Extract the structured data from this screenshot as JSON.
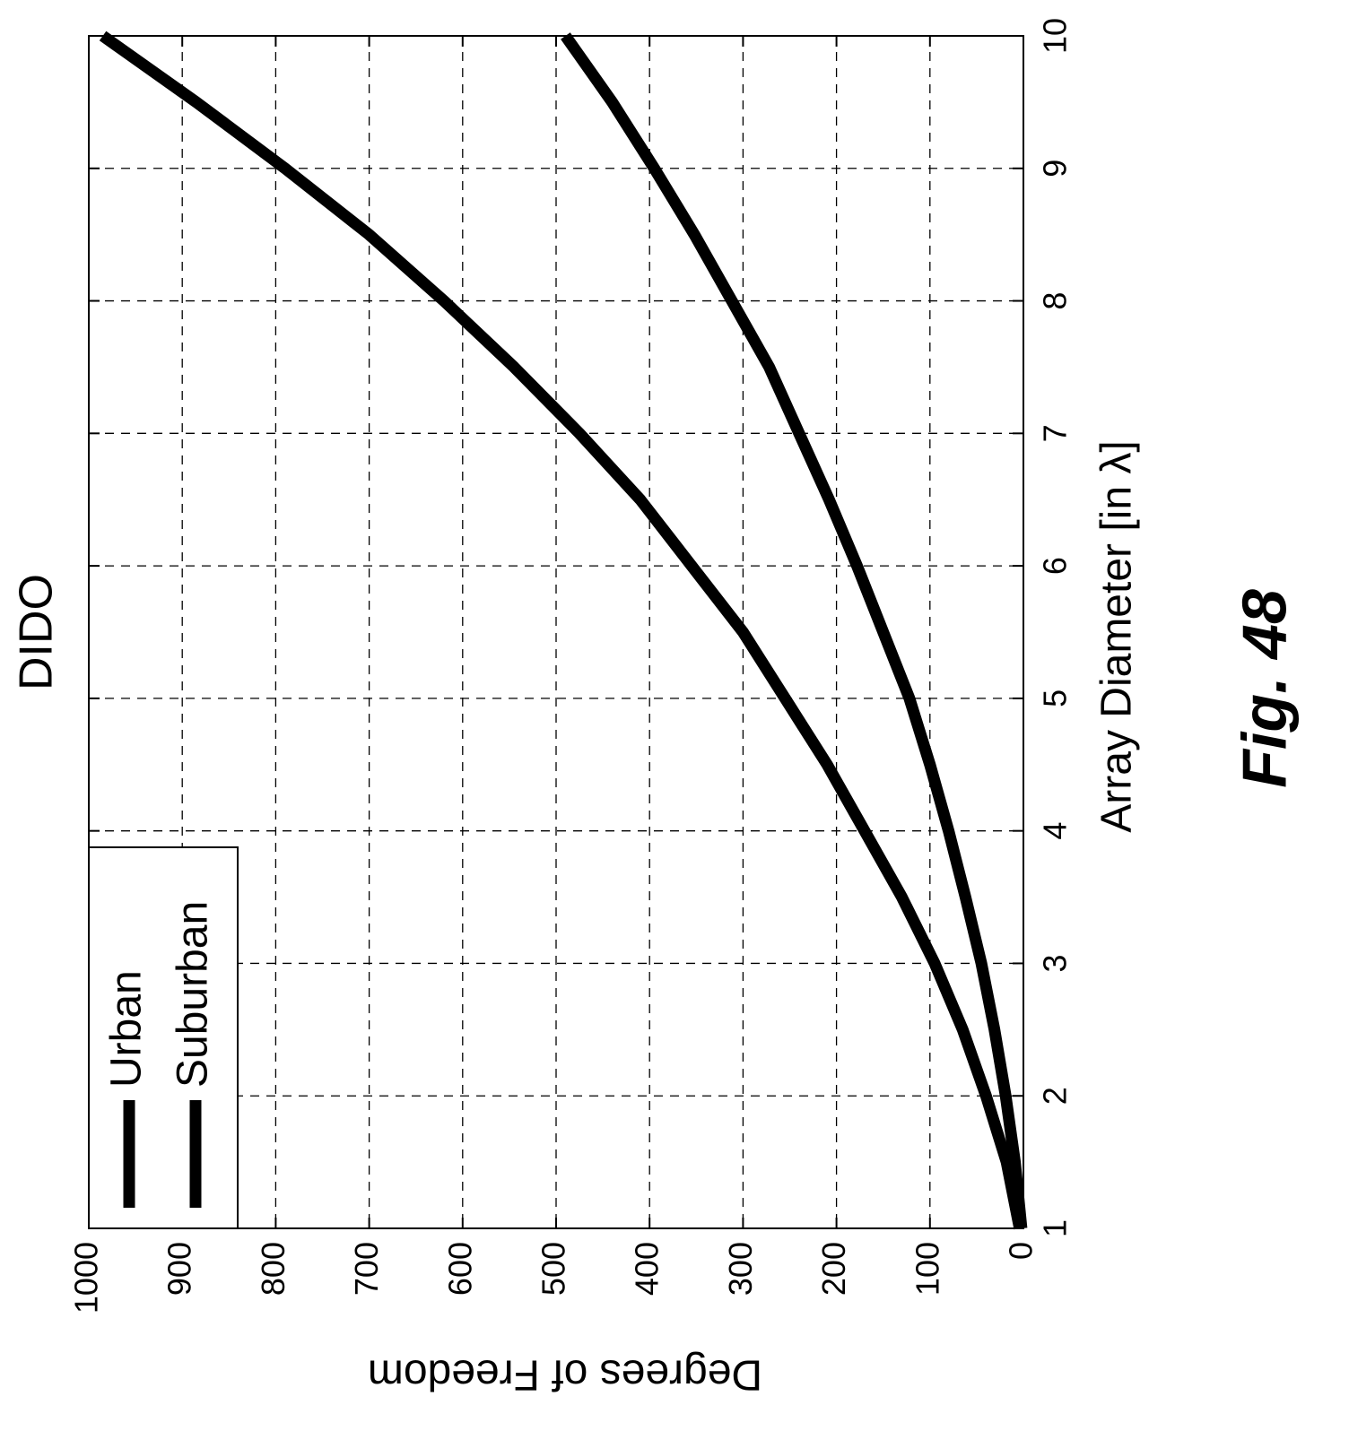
{
  "figure_label": "Fig. 48",
  "chart_data": {
    "type": "line",
    "title": "DIDO",
    "xlabel": "Array Diameter [in λ]",
    "ylabel": "Degrees of Freedom",
    "xlim": [
      1,
      10
    ],
    "ylim": [
      0,
      1000
    ],
    "xticks": [
      1,
      2,
      3,
      4,
      5,
      6,
      7,
      8,
      9,
      10
    ],
    "yticks": [
      0,
      100,
      200,
      300,
      400,
      500,
      600,
      700,
      800,
      900,
      1000
    ],
    "grid": true,
    "legend_position": "top-left",
    "orientation": "rotated 90° clockwise",
    "series": [
      {
        "name": "Urban",
        "color": "#000000",
        "x": [
          1,
          1.5,
          2,
          2.5,
          3,
          3.5,
          4,
          4.5,
          5,
          5.5,
          6,
          6.5,
          7,
          7.5,
          8,
          8.5,
          9,
          9.5,
          10
        ],
        "y": [
          4,
          18,
          40,
          65,
          95,
          130,
          170,
          210,
          255,
          300,
          355,
          410,
          475,
          545,
          620,
          700,
          790,
          885,
          985
        ]
      },
      {
        "name": "Suburban",
        "color": "#000000",
        "x": [
          1,
          1.5,
          2,
          2.5,
          3,
          3.5,
          4,
          4.5,
          5,
          5.5,
          6,
          6.5,
          7,
          7.5,
          8,
          8.5,
          9,
          9.5,
          10
        ],
        "y": [
          2,
          9,
          19,
          31,
          45,
          62,
          80,
          100,
          122,
          150,
          178,
          208,
          240,
          272,
          312,
          352,
          395,
          440,
          490
        ]
      }
    ]
  }
}
